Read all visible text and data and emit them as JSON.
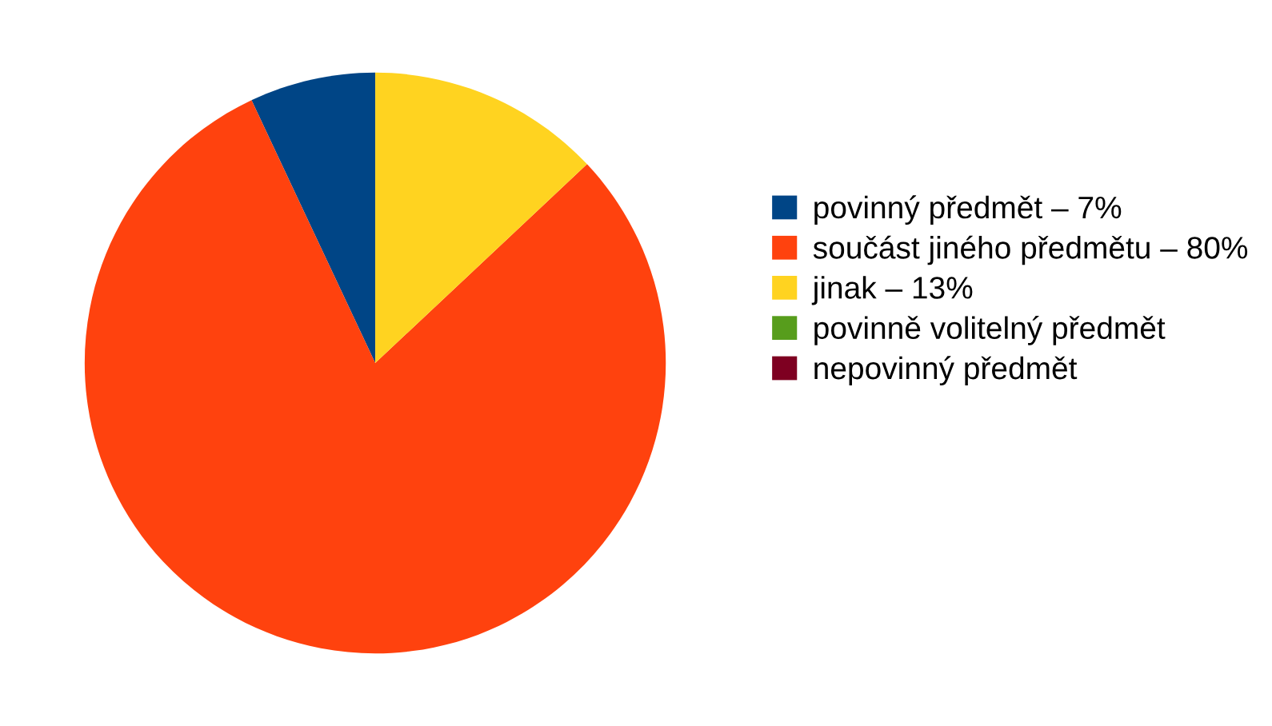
{
  "chart_data": {
    "type": "pie",
    "categories": [
      "povinný předmět – 7%",
      "součást jiného předmětu – 80%",
      "jinak – 13%",
      "povinně volitelný předmět",
      "nepovinný předmět"
    ],
    "values": [
      7,
      80,
      13,
      0,
      0
    ],
    "colors": [
      "#004586",
      "#ff420e",
      "#ffd320",
      "#579d1c",
      "#7e0021"
    ],
    "legend": "right"
  }
}
